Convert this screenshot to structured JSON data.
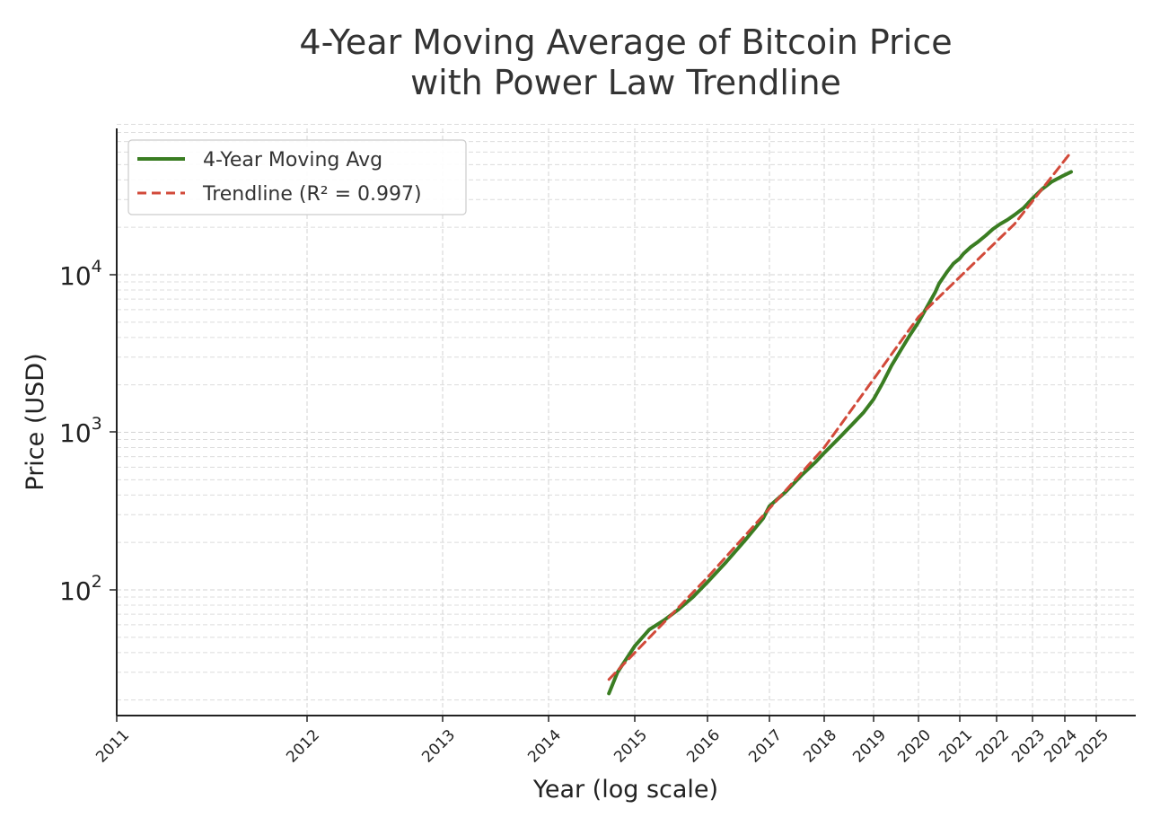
{
  "chart_data": {
    "type": "line",
    "title_lines": [
      "4-Year Moving Average of Bitcoin Price",
      "with Power Law Trendline"
    ],
    "xlabel": "Year (log scale)",
    "ylabel": "Price (USD)",
    "yscale": "log",
    "xscale": "log",
    "ylim": [
      16,
      90000
    ],
    "y_ticks": [
      {
        "value": 100,
        "base": "10",
        "exp": "2"
      },
      {
        "value": 1000,
        "base": "10",
        "exp": "3"
      },
      {
        "value": 10000,
        "base": "10",
        "exp": "4"
      }
    ],
    "x_tick_labels": [
      "2011",
      "2012",
      "2013",
      "2014",
      "2015",
      "2016",
      "2017",
      "2018",
      "2019",
      "2020",
      "2021",
      "2022",
      "2023",
      "2024",
      "2025"
    ],
    "grid": true,
    "legend_position": "top-left",
    "series": [
      {
        "name": "4-Year Moving Avg",
        "color": "#3a7d22",
        "style": "solid",
        "points": [
          [
            "2014.7",
            22
          ],
          [
            "2014.8",
            30
          ],
          [
            "2015.0",
            44
          ],
          [
            "2015.2",
            56
          ],
          [
            "2015.4",
            64
          ],
          [
            "2015.6",
            75
          ],
          [
            "2015.8",
            90
          ],
          [
            "2016.0",
            112
          ],
          [
            "2016.3",
            150
          ],
          [
            "2016.6",
            205
          ],
          [
            "2016.9",
            285
          ],
          [
            "2017.0",
            340
          ],
          [
            "2017.3",
            420
          ],
          [
            "2017.6",
            540
          ],
          [
            "2017.85",
            650
          ],
          [
            "2018.0",
            740
          ],
          [
            "2018.3",
            920
          ],
          [
            "2018.6",
            1150
          ],
          [
            "2018.8",
            1340
          ],
          [
            "2019.0",
            1620
          ],
          [
            "2019.2",
            2050
          ],
          [
            "2019.4",
            2650
          ],
          [
            "2019.6",
            3300
          ],
          [
            "2019.8",
            4100
          ],
          [
            "2020.0",
            5000
          ],
          [
            "2020.2",
            6200
          ],
          [
            "2020.4",
            7700
          ],
          [
            "2020.5",
            8800
          ],
          [
            "2020.7",
            10500
          ],
          [
            "2020.85",
            11800
          ],
          [
            "2021.0",
            12700
          ],
          [
            "2021.1",
            13600
          ],
          [
            "2021.3",
            15000
          ],
          [
            "2021.5",
            16200
          ],
          [
            "2021.7",
            17700
          ],
          [
            "2021.9",
            19500
          ],
          [
            "2022.1",
            21000
          ],
          [
            "2022.3",
            22300
          ],
          [
            "2022.5",
            24000
          ],
          [
            "2022.75",
            26500
          ],
          [
            "2023.0",
            30500
          ],
          [
            "2023.3",
            35000
          ],
          [
            "2023.6",
            39000
          ],
          [
            "2023.9",
            42000
          ],
          [
            "2024.2",
            45000
          ]
        ]
      },
      {
        "name": "Trendline (R² = 0.997)",
        "color": "#d24a3a",
        "style": "dashed",
        "points": [
          [
            "2014.7",
            27
          ],
          [
            "2016.0",
            120
          ],
          [
            "2018.0",
            800
          ],
          [
            "2020.0",
            5400
          ],
          [
            "2022.5",
            21000
          ],
          [
            "2024.2",
            60000
          ]
        ]
      }
    ]
  }
}
